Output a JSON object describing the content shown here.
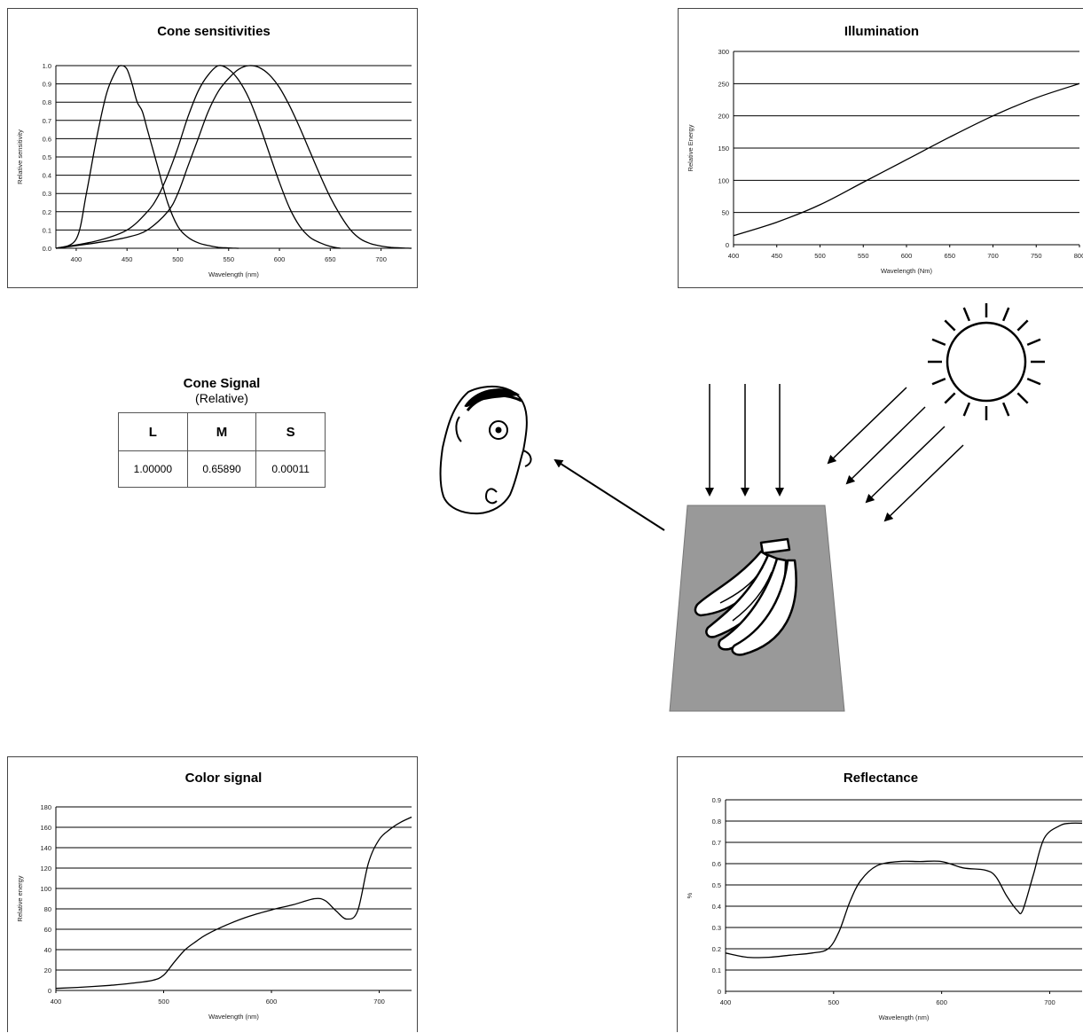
{
  "chart_data": [
    {
      "id": "cone",
      "type": "line",
      "title": "Cone sensitivities",
      "xlabel": "Wavelength (nm)",
      "ylabel": "Relative sensitivity",
      "xlim": [
        380,
        730
      ],
      "ylim": [
        0,
        1
      ],
      "xticks": [
        "400",
        "450",
        "500",
        "550",
        "600",
        "650",
        "700"
      ],
      "xtick_values": [
        400,
        450,
        500,
        550,
        600,
        650,
        700
      ],
      "yticks": [
        "0.0",
        "0.1",
        "0.2",
        "0.3",
        "0.4",
        "0.5",
        "0.6",
        "0.7",
        "0.8",
        "0.9",
        "1.0"
      ],
      "ytick_values": [
        0,
        0.1,
        0.2,
        0.3,
        0.4,
        0.5,
        0.6,
        0.7,
        0.8,
        0.9,
        1.0
      ],
      "grid": true,
      "series": [
        {
          "x": [
            380,
            400,
            410,
            420,
            430,
            440,
            445,
            450,
            455,
            460,
            465,
            470,
            480,
            490,
            500,
            510,
            520,
            530,
            540,
            550,
            560
          ],
          "y": [
            0.0,
            0.05,
            0.3,
            0.6,
            0.85,
            0.98,
            1.0,
            0.98,
            0.9,
            0.8,
            0.75,
            0.65,
            0.45,
            0.25,
            0.12,
            0.06,
            0.03,
            0.015,
            0.005,
            0.002,
            0.0
          ]
        },
        {
          "x": [
            380,
            420,
            450,
            470,
            480,
            490,
            500,
            510,
            520,
            530,
            540,
            550,
            560,
            570,
            580,
            590,
            600,
            610,
            620,
            630,
            640,
            650,
            660
          ],
          "y": [
            0.0,
            0.04,
            0.1,
            0.2,
            0.28,
            0.4,
            0.55,
            0.72,
            0.86,
            0.95,
            1.0,
            0.98,
            0.92,
            0.82,
            0.68,
            0.52,
            0.36,
            0.22,
            0.12,
            0.06,
            0.03,
            0.01,
            0.0
          ]
        },
        {
          "x": [
            380,
            420,
            450,
            470,
            490,
            500,
            510,
            520,
            530,
            540,
            550,
            560,
            570,
            580,
            590,
            600,
            610,
            620,
            630,
            640,
            650,
            660,
            670,
            680,
            690,
            700,
            710,
            720,
            730
          ],
          "y": [
            0.0,
            0.03,
            0.06,
            0.1,
            0.2,
            0.3,
            0.45,
            0.6,
            0.75,
            0.86,
            0.93,
            0.98,
            1.0,
            0.99,
            0.95,
            0.88,
            0.78,
            0.66,
            0.53,
            0.4,
            0.28,
            0.18,
            0.1,
            0.05,
            0.025,
            0.012,
            0.005,
            0.002,
            0.0
          ]
        }
      ]
    },
    {
      "id": "illum",
      "type": "line",
      "title": "Illumination",
      "xlabel": "Wavelength (Nm)",
      "ylabel": "Relative Energy",
      "xlim": [
        400,
        800
      ],
      "ylim": [
        0,
        300
      ],
      "xticks": [
        "400",
        "450",
        "500",
        "550",
        "600",
        "650",
        "700",
        "750",
        "800"
      ],
      "xtick_values": [
        400,
        450,
        500,
        550,
        600,
        650,
        700,
        750,
        800
      ],
      "yticks": [
        "0",
        "50",
        "100",
        "150",
        "200",
        "250",
        "300"
      ],
      "ytick_values": [
        0,
        50,
        100,
        150,
        200,
        250,
        300
      ],
      "grid": true,
      "series": [
        {
          "x": [
            400,
            450,
            500,
            550,
            600,
            650,
            700,
            750,
            800
          ],
          "y": [
            14,
            35,
            62,
            97,
            132,
            167,
            200,
            228,
            250
          ]
        }
      ]
    },
    {
      "id": "colsig",
      "type": "line",
      "title": "Color signal",
      "xlabel": "Wavelength (nm)",
      "ylabel": "Relative energy",
      "xlim": [
        400,
        730
      ],
      "ylim": [
        0,
        180
      ],
      "xticks": [
        "400",
        "500",
        "600",
        "700"
      ],
      "xtick_values": [
        400,
        500,
        600,
        700
      ],
      "yticks": [
        "0",
        "20",
        "40",
        "60",
        "80",
        "100",
        "120",
        "140",
        "160",
        "180"
      ],
      "ytick_values": [
        0,
        20,
        40,
        60,
        80,
        100,
        120,
        140,
        160,
        180
      ],
      "grid": true,
      "series": [
        {
          "x": [
            400,
            420,
            450,
            470,
            490,
            500,
            510,
            520,
            530,
            540,
            560,
            580,
            600,
            620,
            640,
            650,
            660,
            670,
            680,
            690,
            700,
            710,
            720,
            730
          ],
          "y": [
            2,
            3,
            5,
            7,
            10,
            15,
            28,
            40,
            48,
            55,
            65,
            73,
            79,
            84,
            90,
            88,
            78,
            70,
            78,
            125,
            148,
            158,
            165,
            170
          ]
        }
      ]
    },
    {
      "id": "refl",
      "type": "line",
      "title": "Reflectance",
      "xlabel": "Wavelength (nm)",
      "ylabel": "%",
      "xlim": [
        400,
        730
      ],
      "ylim": [
        0,
        0.9
      ],
      "xticks": [
        "400",
        "500",
        "600",
        "700"
      ],
      "xtick_values": [
        400,
        500,
        600,
        700
      ],
      "yticks": [
        "0",
        "0.1",
        "0.2",
        "0.3",
        "0.4",
        "0.5",
        "0.6",
        "0.7",
        "0.8",
        "0.9"
      ],
      "ytick_values": [
        0,
        0.1,
        0.2,
        0.3,
        0.4,
        0.5,
        0.6,
        0.7,
        0.8,
        0.9
      ],
      "grid": true,
      "series": [
        {
          "x": [
            400,
            420,
            440,
            460,
            480,
            495,
            505,
            515,
            525,
            540,
            560,
            580,
            600,
            620,
            640,
            650,
            660,
            670,
            675,
            685,
            695,
            710,
            720,
            730
          ],
          "y": [
            0.18,
            0.16,
            0.16,
            0.17,
            0.18,
            0.2,
            0.28,
            0.42,
            0.52,
            0.59,
            0.61,
            0.61,
            0.61,
            0.58,
            0.57,
            0.54,
            0.45,
            0.38,
            0.38,
            0.55,
            0.72,
            0.78,
            0.79,
            0.79
          ]
        }
      ]
    }
  ],
  "cone_signal": {
    "title": "Cone Signal",
    "subtitle": "(Relative)",
    "headers": [
      "L",
      "M",
      "S"
    ],
    "values": [
      "1.00000",
      "0.65890",
      "0.00011"
    ]
  }
}
